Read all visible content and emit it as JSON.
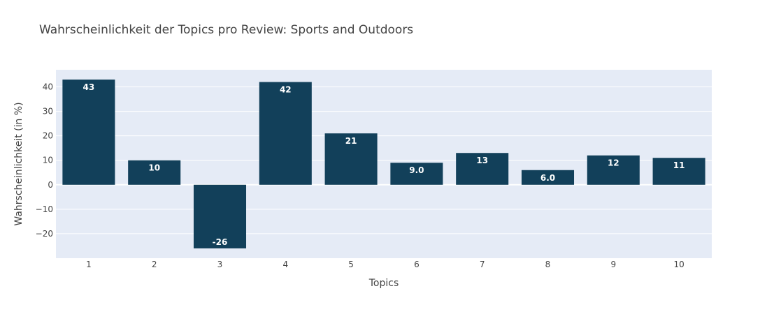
{
  "chart_data": {
    "type": "bar",
    "title": "Wahrscheinlichkeit der Topics pro Review: Sports and Outdoors",
    "xlabel": "Topics",
    "ylabel": "Wahrscheinlichkeit (in %)",
    "categories": [
      "1",
      "2",
      "3",
      "4",
      "5",
      "6",
      "7",
      "8",
      "9",
      "10"
    ],
    "values": [
      43,
      10,
      -26,
      42,
      21,
      9,
      13,
      6,
      12,
      11
    ],
    "labels": [
      "43",
      "10",
      "-26",
      "42",
      "21",
      "9.0",
      "13",
      "6.0",
      "12",
      "11"
    ],
    "yticks": [
      -20,
      -10,
      0,
      10,
      20,
      30,
      40
    ],
    "ytick_labels": [
      "−20",
      "−10",
      "0",
      "10",
      "20",
      "30",
      "40"
    ],
    "ylim": [
      -30,
      47
    ],
    "grid": true,
    "colors": {
      "bar": "#12405a",
      "plot_bg": "#e5ebf6",
      "grid": "#ffffff"
    }
  }
}
